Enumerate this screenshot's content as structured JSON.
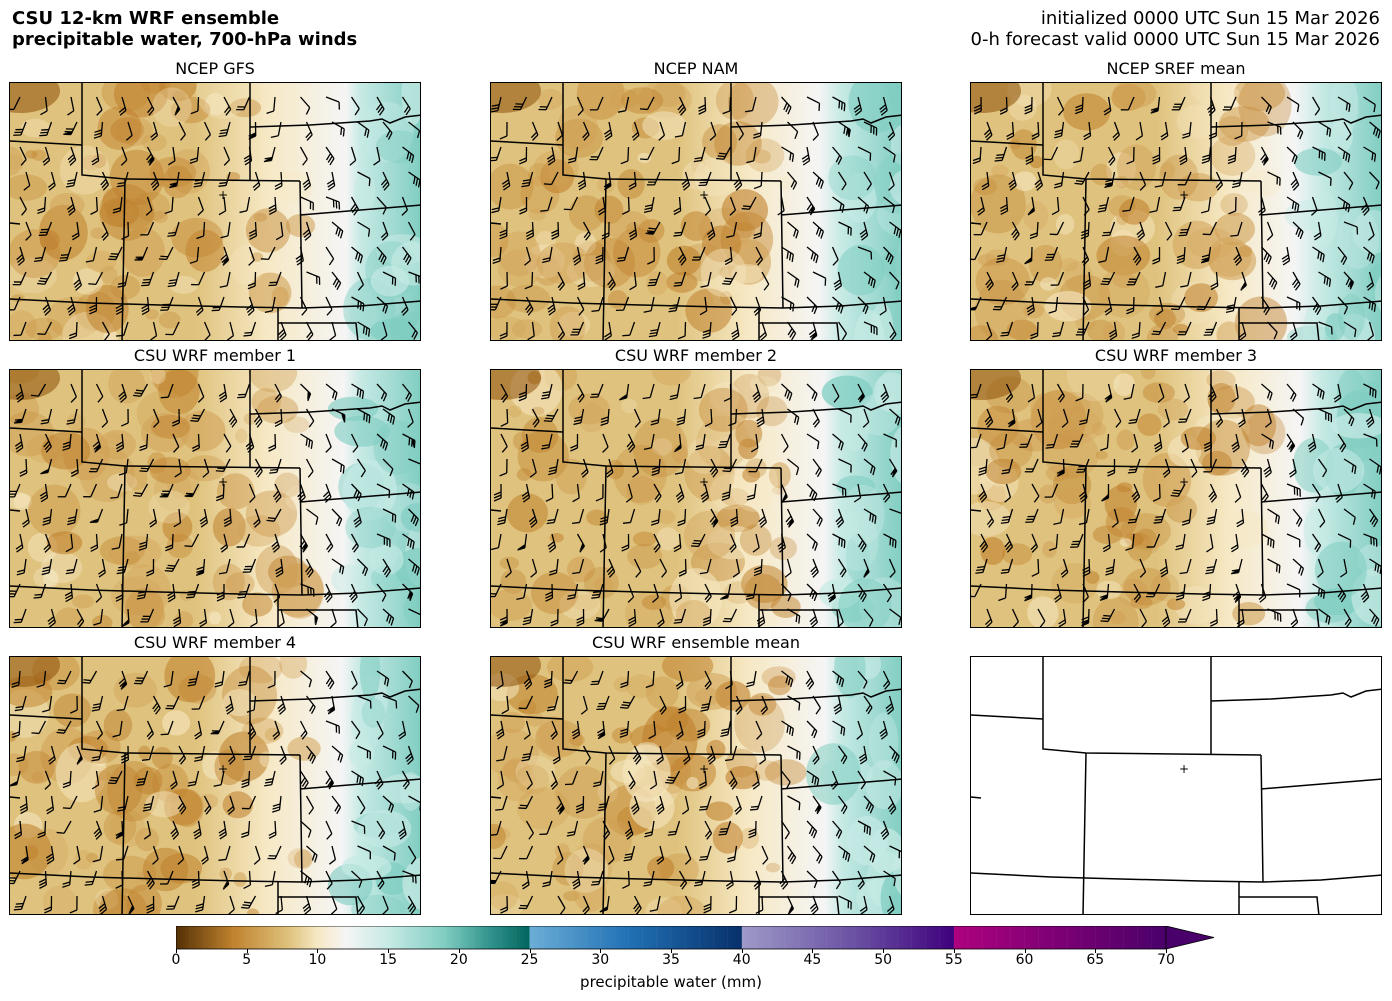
{
  "header": {
    "title_line1": "CSU 12-km WRF ensemble",
    "title_line2": "precipitable water, 700-hPa winds",
    "init_line": "initialized 0000 UTC Sun 15 Mar 2026",
    "valid_line": "0-h forecast valid 0000 UTC Sun 15 Mar 2026"
  },
  "panels": [
    {
      "title": "NCEP GFS",
      "moist_east": 0.55,
      "style": "model"
    },
    {
      "title": "NCEP NAM",
      "moist_east": 0.75,
      "style": "model"
    },
    {
      "title": "NCEP SREF mean",
      "moist_east": 0.85,
      "style": "model"
    },
    {
      "title": "CSU WRF member 1",
      "moist_east": 0.6,
      "style": "model"
    },
    {
      "title": "CSU WRF member 2",
      "moist_east": 0.62,
      "style": "model"
    },
    {
      "title": "CSU WRF member 3",
      "moist_east": 0.7,
      "style": "model"
    },
    {
      "title": "CSU WRF member 4",
      "moist_east": 0.65,
      "style": "model"
    },
    {
      "title": "CSU WRF ensemble mean",
      "moist_east": 0.6,
      "style": "model"
    },
    {
      "title": "",
      "moist_east": 0,
      "style": "blank"
    }
  ],
  "colorbar": {
    "label": "precipitable water (mm)",
    "ticks": [
      "0",
      "5",
      "10",
      "15",
      "20",
      "25",
      "30",
      "35",
      "40",
      "45",
      "50",
      "55",
      "60",
      "65",
      "70"
    ],
    "min": 0,
    "max": 70,
    "colors": {
      "brown_dark": "#543005",
      "brown": "#bf812d",
      "tan": "#dfc27d",
      "cream": "#f6e8c3",
      "white": "#f5f5f5",
      "teal_light": "#c7eae5",
      "teal": "#80cdc1",
      "teal_dark": "#35978f",
      "teal_darkest": "#01665e",
      "blue_light": "#6baed6",
      "blue": "#2171b5",
      "blue_dark": "#08306b",
      "purple_light": "#9e9ac8",
      "purple": "#6a51a3",
      "purple_dark": "#3f007d",
      "magenta": "#ae017e",
      "magenta_dark": "#49006a"
    }
  },
  "map": {
    "marker_symbol": "+",
    "state_line_color": "#000000"
  }
}
